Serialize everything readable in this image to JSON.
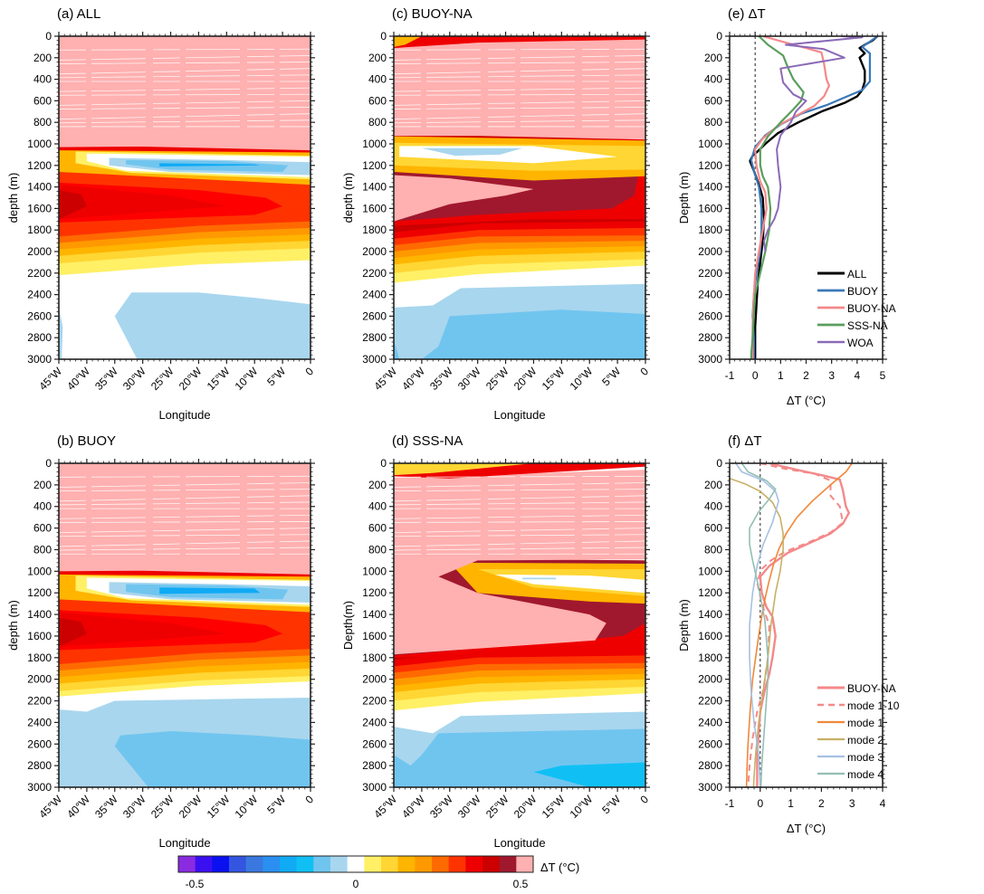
{
  "colorbar": {
    "label": "ΔT (°C)",
    "tick_labels": [
      "-0.5",
      "0",
      "0.5"
    ],
    "colors": [
      "#8a2be2",
      "#3a10f0",
      "#0a10f0",
      "#3355e0",
      "#3a78e0",
      "#2a8ff0",
      "#10aaf5",
      "#10c0f5",
      "#70c5ef",
      "#a8d6ee",
      "#ffffff",
      "#fff066",
      "#ffd633",
      "#ffb400",
      "#ff9900",
      "#ff6a00",
      "#ff3300",
      "#ee0000",
      "#cc0000",
      "#a0182e",
      "#ffb0b0"
    ]
  },
  "chart_data": [
    {
      "type": "heatmap",
      "id": "a",
      "title": "(a) ALL",
      "xlabel": "Longitude",
      "ylabel": "depth (m)",
      "x_ticks": [
        "45°W",
        "40°W",
        "35°W",
        "30°W",
        "25°W",
        "20°W",
        "15°W",
        "10°W",
        "5°W",
        "0"
      ],
      "y_ticks": [
        "0",
        "200",
        "400",
        "600",
        "800",
        "1000",
        "1200",
        "1400",
        "1600",
        "1800",
        "2000",
        "2200",
        "2400",
        "2600",
        "2800",
        "3000"
      ],
      "xlim": [
        -45,
        0
      ],
      "ylim": [
        0,
        3000
      ],
      "clim": [
        -0.5,
        0.5
      ],
      "layers": [
        {
          "name": "upper-saturated",
          "value": ">0.5",
          "depth_top": 0,
          "depth_bottom": 1030,
          "tilt": 30
        },
        {
          "name": "thin-max-band",
          "value": 0.47,
          "depth_top": 1030,
          "depth_bottom": 1060
        },
        {
          "name": "cool-lens",
          "value": -0.15,
          "depth_center": 1180,
          "lon_west": -38,
          "lon_east": -2
        },
        {
          "name": "warm-core",
          "value": 0.45,
          "depth_center": 1580,
          "lon_west": -45,
          "lon_east": -8
        },
        {
          "name": "transition-zero",
          "value": 0,
          "depth_top": 2150,
          "depth_bottom": 2400
        },
        {
          "name": "deep-cool",
          "value": -0.05,
          "depth_top": 2400,
          "depth_bottom": 3000
        }
      ]
    },
    {
      "type": "heatmap",
      "id": "b",
      "title": "(b) BUOY",
      "xlabel": "Longitude",
      "ylabel": "depth (m)",
      "x_ticks": [
        "45°W",
        "40°W",
        "35°W",
        "30°W",
        "25°W",
        "20°W",
        "15°W",
        "10°W",
        "5°W",
        "0"
      ],
      "y_ticks": [
        "0",
        "200",
        "400",
        "600",
        "800",
        "1000",
        "1200",
        "1400",
        "1600",
        "1800",
        "2000",
        "2200",
        "2400",
        "2600",
        "2800",
        "3000"
      ],
      "xlim": [
        -45,
        0
      ],
      "ylim": [
        0,
        3000
      ],
      "clim": [
        -0.5,
        0.5
      ],
      "layers": [
        {
          "name": "upper-saturated",
          "value": ">0.5",
          "depth_top": 0,
          "depth_bottom": 1000
        },
        {
          "name": "cool-lens",
          "value": -0.2,
          "depth_center": 1160,
          "lon_west": -42,
          "lon_east": 0
        },
        {
          "name": "warm-core",
          "value": 0.4,
          "depth_center": 1580,
          "lon_west": -45,
          "lon_east": -4
        },
        {
          "name": "transition-zero",
          "value": 0,
          "depth_top": 2050,
          "depth_bottom": 2250
        },
        {
          "name": "deep-cool",
          "value": -0.1,
          "depth_top": 2200,
          "depth_bottom": 3000
        }
      ]
    },
    {
      "type": "heatmap",
      "id": "c",
      "title": "(c) BUOY-NA",
      "xlabel": "Longitude",
      "ylabel": "depth (m)",
      "x_ticks": [
        "45°W",
        "40°W",
        "35°W",
        "30°W",
        "25°W",
        "20°W",
        "15°W",
        "10°W",
        "5°W",
        "0"
      ],
      "y_ticks": [
        "0",
        "200",
        "400",
        "600",
        "800",
        "1000",
        "1200",
        "1400",
        "1600",
        "1800",
        "2000",
        "2200",
        "2400",
        "2600",
        "2800",
        "3000"
      ],
      "xlim": [
        -45,
        0
      ],
      "ylim": [
        0,
        3000
      ],
      "clim": [
        -0.5,
        0.5
      ],
      "layers": [
        {
          "name": "surface-warm-band",
          "value": 0.4,
          "depth_top": 0,
          "depth_bottom": 100
        },
        {
          "name": "upper-saturated",
          "value": ">0.5",
          "depth_top": 100,
          "depth_bottom": 930
        },
        {
          "name": "cool-lens",
          "value": -0.05,
          "depth_center": 1070,
          "lon_west": -40,
          "lon_east": -10
        },
        {
          "name": "lower-saturated-tongue",
          "value": ">0.5",
          "depth_center": 1500,
          "lon_west": -45,
          "lon_east": -25
        },
        {
          "name": "warm-core",
          "value": 0.48,
          "depth_center": 1580,
          "lon_west": -45,
          "lon_east": -3
        },
        {
          "name": "transition-zero",
          "value": 0,
          "depth_top": 2200,
          "depth_bottom": 2450
        },
        {
          "name": "deep-cool",
          "value": -0.1,
          "depth_top": 2300,
          "depth_bottom": 3000
        }
      ]
    },
    {
      "type": "heatmap",
      "id": "d",
      "title": "(d) SSS-NA",
      "xlabel": "Longitude",
      "ylabel": "Depth(m)",
      "x_ticks": [
        "45°W",
        "40°W",
        "35°W",
        "30°W",
        "25°W",
        "20°W",
        "15°W",
        "10°W",
        "5°W",
        "0"
      ],
      "y_ticks": [
        "0",
        "200",
        "400",
        "600",
        "800",
        "1000",
        "1200",
        "1400",
        "1600",
        "1800",
        "2000",
        "2200",
        "2400",
        "2600",
        "2800",
        "3000"
      ],
      "xlim": [
        -45,
        0
      ],
      "ylim": [
        0,
        3000
      ],
      "clim": [
        -0.5,
        0.5
      ],
      "layers": [
        {
          "name": "surface-warm-band",
          "value": 0.3,
          "depth_top": 0,
          "depth_bottom": 120
        },
        {
          "name": "upper-saturated",
          "value": ">0.5",
          "depth_top": 120,
          "depth_bottom": 900
        },
        {
          "name": "s-shaped-warm-band",
          "value": 0.45,
          "depth_top": 900,
          "depth_bottom": 1800
        },
        {
          "name": "zero-lens",
          "value": 0,
          "depth_center": 1080,
          "lon_west": -27,
          "lon_east": 0
        },
        {
          "name": "transition-zero",
          "value": 0,
          "depth_top": 2150,
          "depth_bottom": 2400
        },
        {
          "name": "deep-cool",
          "value": -0.1,
          "depth_top": 2300,
          "depth_bottom": 3000
        },
        {
          "name": "deepest-cool",
          "value": -0.2,
          "depth_center": 2870,
          "lon_west": -20,
          "lon_east": 0
        }
      ]
    },
    {
      "type": "line",
      "id": "e",
      "title": "(e) ΔT",
      "xlabel": "ΔT (°C)",
      "ylabel": "Depth (m)",
      "xlim": [
        -1,
        5
      ],
      "ylim": [
        0,
        3000
      ],
      "x_ticks": [
        "-1",
        "0",
        "1",
        "2",
        "3",
        "4",
        "5"
      ],
      "y_ticks": [
        "0",
        "200",
        "400",
        "600",
        "800",
        "1000",
        "1200",
        "1400",
        "1600",
        "1800",
        "2000",
        "2200",
        "2400",
        "2600",
        "2800",
        "3000"
      ],
      "legend_position": "bottom-right",
      "reference_line_x": 0,
      "series": [
        {
          "name": "ALL",
          "color": "#000000",
          "width": 2.4,
          "dash": "",
          "x": [
            4.8,
            4.6,
            4.3,
            4.1,
            4.3,
            4.1,
            4.2,
            4.3,
            4.3,
            4.2,
            4.0,
            3.5,
            2.6,
            1.7,
            0.9,
            0.4,
            0.1,
            -0.1,
            -0.2,
            -0.05,
            0.15,
            0.3,
            0.35,
            0.3,
            0.2,
            0.1,
            0.05,
            0.0,
            0.0,
            0.0,
            0.0
          ],
          "y": [
            0,
            40,
            80,
            110,
            160,
            200,
            260,
            320,
            420,
            500,
            560,
            620,
            700,
            800,
            900,
            1000,
            1070,
            1110,
            1160,
            1250,
            1380,
            1500,
            1700,
            1900,
            2100,
            2300,
            2500,
            2700,
            2850,
            2950,
            3000
          ]
        },
        {
          "name": "BUOY",
          "color": "#3a78b8",
          "width": 2.2,
          "dash": "",
          "x": [
            4.8,
            4.5,
            4.2,
            4.5,
            4.5,
            4.5,
            4.2,
            3.6,
            2.8,
            1.8,
            1.0,
            0.4,
            0.0,
            -0.15,
            -0.05,
            0.15,
            0.25,
            0.25,
            0.2,
            0.05,
            -0.05,
            -0.1,
            -0.05,
            -0.05
          ],
          "y": [
            0,
            50,
            100,
            160,
            260,
            420,
            500,
            560,
            640,
            720,
            820,
            920,
            1030,
            1150,
            1250,
            1400,
            1600,
            1800,
            2000,
            2200,
            2400,
            2600,
            2800,
            3000
          ]
        },
        {
          "name": "BUOY-NA",
          "color": "#f4898a",
          "width": 2.2,
          "dash": "",
          "x": [
            0.3,
            1.2,
            2.0,
            2.6,
            2.7,
            2.8,
            2.9,
            2.7,
            2.3,
            1.6,
            0.9,
            0.3,
            0.0,
            0.05,
            0.2,
            0.4,
            0.45,
            0.3,
            0.15,
            0.0,
            -0.05,
            -0.1,
            -0.1
          ],
          "y": [
            0,
            60,
            110,
            150,
            250,
            400,
            460,
            560,
            650,
            740,
            830,
            950,
            1050,
            1200,
            1350,
            1450,
            1600,
            1800,
            2000,
            2200,
            2400,
            2700,
            3000
          ]
        },
        {
          "name": "SSS-NA",
          "color": "#5a9e5c",
          "width": 2.2,
          "dash": "",
          "x": [
            0.15,
            0.5,
            1.1,
            1.3,
            1.5,
            1.9,
            1.8,
            1.5,
            1.0,
            0.5,
            0.2,
            0.2,
            0.3,
            0.5,
            0.6,
            0.55,
            0.4,
            0.2,
            0.0,
            -0.05,
            -0.1,
            -0.15,
            -0.15
          ],
          "y": [
            0,
            80,
            180,
            300,
            400,
            520,
            600,
            680,
            800,
            930,
            1050,
            1200,
            1300,
            1400,
            1600,
            1800,
            2000,
            2200,
            2400,
            2600,
            2800,
            2950,
            3000
          ]
        },
        {
          "name": "WOA",
          "color": "#8a6ab8",
          "width": 2.0,
          "dash": "",
          "x": [
            3.4,
            4.2,
            1.2,
            2.7,
            3.5,
            1.0,
            1.1,
            1.5,
            2.0,
            1.6,
            1.4,
            1.0,
            0.85,
            0.9,
            1.0,
            0.95,
            0.9,
            0.75,
            0.5,
            0.35,
            0.4
          ],
          "y": [
            0,
            10,
            80,
            120,
            200,
            300,
            430,
            540,
            600,
            700,
            800,
            920,
            1050,
            1200,
            1400,
            1500,
            1600,
            1700,
            1800,
            1900,
            2000
          ]
        }
      ]
    },
    {
      "type": "line",
      "id": "f",
      "title": "(f) ΔT",
      "xlabel": "ΔT (°C)",
      "ylabel": "Depth (m)",
      "xlim": [
        -1,
        4
      ],
      "ylim": [
        0,
        3000
      ],
      "x_ticks": [
        "-1",
        "0",
        "1",
        "2",
        "3",
        "4"
      ],
      "y_ticks": [
        "0",
        "200",
        "400",
        "600",
        "800",
        "1000",
        "1200",
        "1400",
        "1600",
        "1800",
        "2000",
        "2200",
        "2400",
        "2600",
        "2800",
        "3000"
      ],
      "legend_position": "bottom-right",
      "reference_line_x": 0,
      "series": [
        {
          "name": "BUOY-NA",
          "color": "#f4898a",
          "width": 2.4,
          "dash": "",
          "x": [
            0.3,
            1.2,
            2.0,
            2.6,
            2.7,
            2.8,
            2.9,
            2.7,
            2.3,
            1.6,
            0.9,
            0.3,
            0.0,
            0.05,
            0.2,
            0.4,
            0.5,
            0.4,
            0.3,
            0.15,
            0.0,
            -0.05,
            -0.1,
            -0.1
          ],
          "y": [
            0,
            60,
            110,
            150,
            250,
            400,
            460,
            560,
            650,
            740,
            830,
            950,
            1050,
            1200,
            1330,
            1420,
            1600,
            1800,
            1950,
            2100,
            2300,
            2500,
            2700,
            3000
          ]
        },
        {
          "name": "mode 1-10",
          "color": "#f4898a",
          "width": 2.0,
          "dash": "7,5",
          "x": [
            0.0,
            0.8,
            1.8,
            2.3,
            2.3,
            2.6,
            2.7,
            2.3,
            1.6,
            0.8,
            0.35,
            0.05,
            -0.1,
            0.05,
            0.3,
            0.25,
            0.1,
            -0.1,
            -0.25,
            -0.35,
            -0.4
          ],
          "y": [
            0,
            50,
            100,
            160,
            300,
            400,
            550,
            640,
            730,
            820,
            900,
            980,
            1100,
            1300,
            1500,
            1800,
            2100,
            2300,
            2550,
            2800,
            3000
          ]
        },
        {
          "name": "mode 1",
          "color": "#f0883a",
          "width": 1.6,
          "dash": "",
          "x": [
            3.0,
            2.8,
            2.3,
            1.7,
            1.2,
            0.85,
            0.6,
            0.42,
            0.28,
            0.16,
            0.06,
            -0.05,
            -0.15,
            -0.25,
            -0.33,
            -0.4,
            -0.43,
            -0.45
          ],
          "y": [
            0,
            80,
            200,
            350,
            500,
            650,
            800,
            950,
            1100,
            1250,
            1400,
            1600,
            1800,
            2000,
            2300,
            2600,
            2800,
            3000
          ]
        },
        {
          "name": "mode 2",
          "color": "#c8b065",
          "width": 1.6,
          "dash": "",
          "x": [
            -1.0,
            -0.5,
            0.0,
            0.4,
            0.65,
            0.75,
            0.75,
            0.65,
            0.5,
            0.35,
            0.25,
            0.1,
            -0.05,
            -0.15,
            -0.2,
            -0.22
          ],
          "y": [
            140,
            190,
            260,
            360,
            500,
            650,
            800,
            1000,
            1200,
            1500,
            1800,
            2100,
            2400,
            2700,
            2900,
            3000
          ]
        },
        {
          "name": "mode 3",
          "color": "#a6c0e2",
          "width": 1.6,
          "dash": "",
          "x": [
            -0.8,
            -0.6,
            0.1,
            0.5,
            0.6,
            0.4,
            0.1,
            -0.1,
            -0.25,
            -0.35,
            -0.35,
            -0.3,
            -0.2,
            -0.05,
            0.0
          ],
          "y": [
            0,
            80,
            160,
            260,
            350,
            550,
            750,
            950,
            1200,
            1500,
            1800,
            2100,
            2400,
            2700,
            3000
          ]
        },
        {
          "name": "mode 4",
          "color": "#93bfb4",
          "width": 1.6,
          "dash": "",
          "x": [
            -0.6,
            -0.4,
            0.2,
            0.5,
            0.3,
            -0.05,
            -0.35,
            -0.35,
            -0.25,
            -0.05,
            0.15,
            0.25,
            0.25,
            0.15,
            0.05,
            0.02
          ],
          "y": [
            0,
            80,
            160,
            240,
            330,
            450,
            600,
            750,
            900,
            1150,
            1450,
            1800,
            2000,
            2400,
            2800,
            3000
          ]
        }
      ]
    }
  ]
}
